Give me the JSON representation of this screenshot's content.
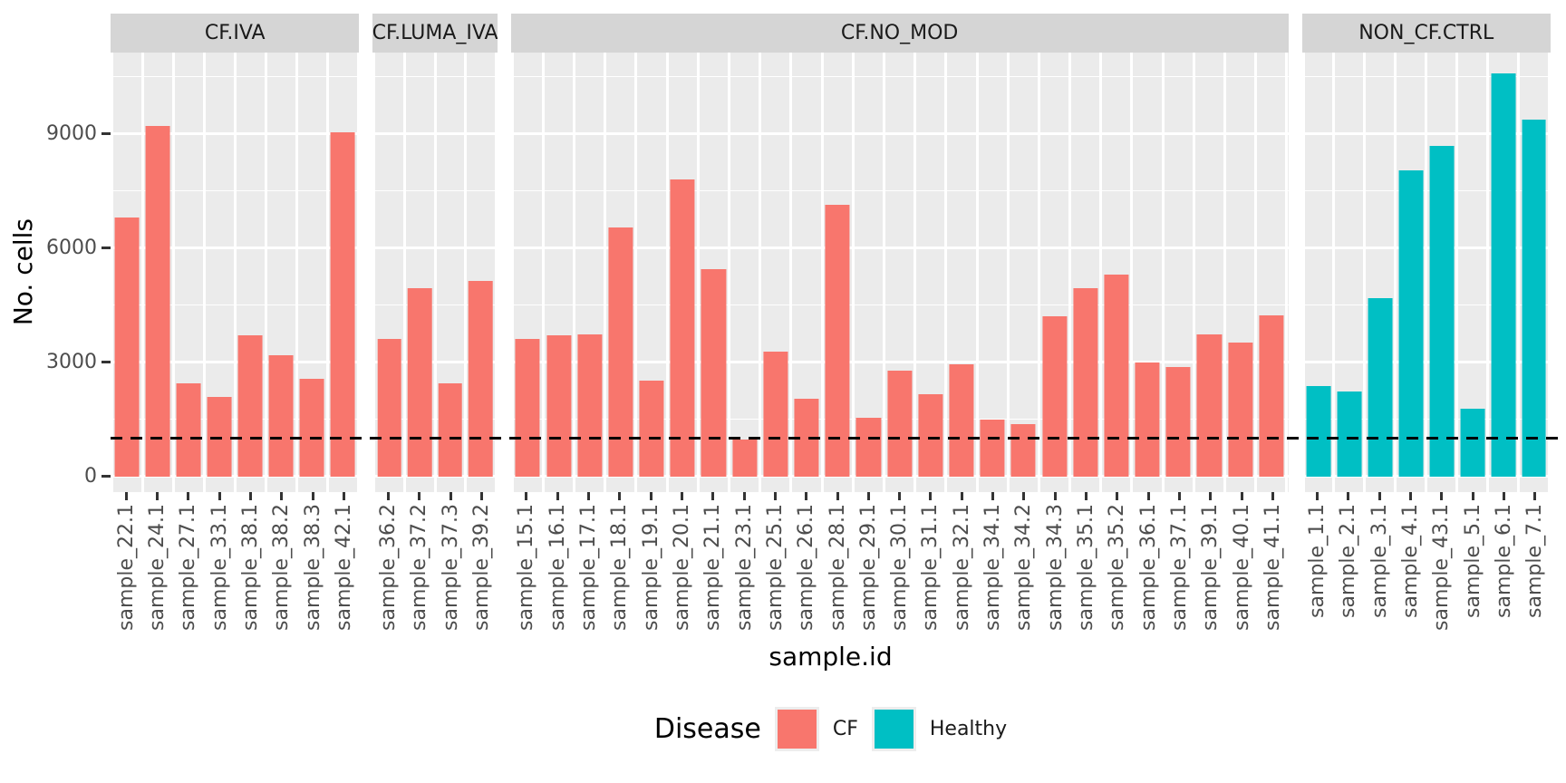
{
  "chart_data": {
    "type": "bar",
    "title": "",
    "xlabel": "sample.id",
    "ylabel": "No. cells",
    "y_ticks": [
      0,
      3000,
      6000,
      9000
    ],
    "y_minor_ticks": [
      1500,
      4500,
      7500,
      10500
    ],
    "ylim": [
      0,
      11140
    ],
    "grid": true,
    "hline": {
      "value": 1000,
      "line_style": "dashed",
      "color": "#000000"
    },
    "legend": {
      "title": "Disease",
      "position": "bottom",
      "entries": [
        {
          "label": "CF",
          "color": "#F8766D"
        },
        {
          "label": "Healthy",
          "color": "#00BFC4"
        }
      ]
    },
    "facets": [
      {
        "label": "CF.IVA",
        "group": "CF",
        "categories": [
          "sample_22.1",
          "sample_24.1",
          "sample_27.1",
          "sample_33.1",
          "sample_38.1",
          "sample_38.2",
          "sample_38.3",
          "sample_42.1"
        ],
        "values": [
          6800,
          9210,
          2460,
          2100,
          3710,
          3200,
          2580,
          9050
        ]
      },
      {
        "label": "CF.LUMA_IVA",
        "group": "CF",
        "categories": [
          "sample_36.2",
          "sample_37.2",
          "sample_37.3",
          "sample_39.2"
        ],
        "values": [
          3610,
          4950,
          2460,
          5150
        ]
      },
      {
        "label": "CF.NO_MOD",
        "group": "CF",
        "categories": [
          "sample_15.1",
          "sample_16.1",
          "sample_17.1",
          "sample_18.1",
          "sample_19.1",
          "sample_20.1",
          "sample_21.1",
          "sample_23.1",
          "sample_25.1",
          "sample_26.1",
          "sample_28.1",
          "sample_29.1",
          "sample_30.1",
          "sample_31.1",
          "sample_32.1",
          "sample_34.1",
          "sample_34.2",
          "sample_34.3",
          "sample_35.1",
          "sample_35.2",
          "sample_36.1",
          "sample_37.1",
          "sample_39.1",
          "sample_40.1",
          "sample_41.1"
        ],
        "values": [
          3620,
          3720,
          3750,
          6550,
          2520,
          7800,
          5460,
          980,
          3280,
          2050,
          7150,
          1550,
          2780,
          2170,
          2960,
          1500,
          1380,
          4210,
          4950,
          5300,
          3000,
          2890,
          3730,
          3520,
          4230
        ]
      },
      {
        "label": "NON_CF.CTRL",
        "group": "Healthy",
        "categories": [
          "sample_1.1",
          "sample_2.1",
          "sample_3.1",
          "sample_4.1",
          "sample_43.1",
          "sample_5.1",
          "sample_6.1",
          "sample_7.1"
        ],
        "values": [
          2390,
          2250,
          4680,
          8040,
          8690,
          1790,
          10590,
          9390
        ]
      }
    ]
  },
  "colors": {
    "bar_cf": "#F8766D",
    "bar_healthy": "#00BFC4",
    "panel_bg": "#EBEBEB",
    "strip_bg": "#D5D5D5",
    "gridline": "#FFFFFF",
    "tick_text": "#4D4D4D",
    "strip_text": "#1A1A1A",
    "hline": "#000000"
  }
}
